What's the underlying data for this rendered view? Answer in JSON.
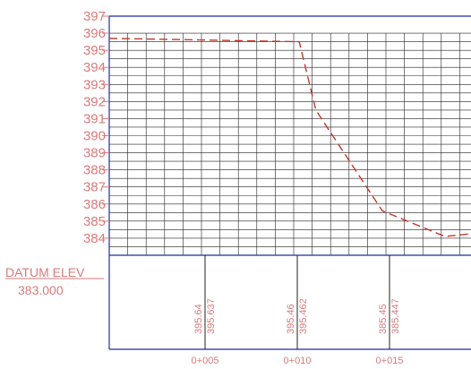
{
  "chart_data": {
    "type": "line",
    "title": "",
    "xlabel": "",
    "ylabel": "",
    "y_range": [
      384,
      397
    ],
    "y_ticks": [
      "397",
      "396",
      "395",
      "394",
      "393",
      "392",
      "391",
      "390",
      "389",
      "388",
      "387",
      "386",
      "385",
      "384"
    ],
    "datum": {
      "label": "DATUM ELEV",
      "value": "383.000"
    },
    "x_ticks": [
      {
        "station": 5,
        "label": "0+005"
      },
      {
        "station": 10,
        "label": "0+010"
      },
      {
        "station": 15,
        "label": "0+015"
      }
    ],
    "ground_profile": {
      "style": "dashed",
      "color": "#c0392b",
      "points": [
        [
          0,
          395.7
        ],
        [
          10.3,
          395.5
        ],
        [
          11.2,
          391.5
        ],
        [
          14.8,
          385.6
        ],
        [
          18.2,
          384.1
        ],
        [
          20,
          384.3
        ]
      ]
    },
    "table_values": [
      {
        "station": 5,
        "values": [
          "395.64",
          "395.637"
        ]
      },
      {
        "station": 10,
        "values": [
          "395.46",
          "395.462"
        ]
      },
      {
        "station": 15,
        "values": [
          "385.45",
          "385.447"
        ]
      }
    ],
    "grid": true
  },
  "colors": {
    "frame": "#1f2fa0",
    "grid": "#222222",
    "labels": "#d97a7a",
    "ground": "#c0392b"
  }
}
